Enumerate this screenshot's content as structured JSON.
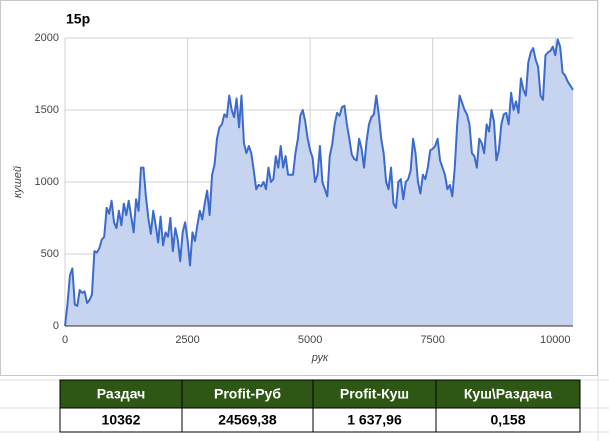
{
  "chart_data": {
    "type": "area",
    "title": "15р",
    "xlabel": "рук",
    "ylabel": "кушей",
    "x": [
      0,
      50,
      100,
      150,
      200,
      250,
      300,
      350,
      400,
      450,
      500,
      550,
      600,
      650,
      700,
      750,
      800,
      850,
      900,
      950,
      1000,
      1050,
      1100,
      1150,
      1200,
      1250,
      1300,
      1350,
      1400,
      1450,
      1500,
      1550,
      1600,
      1650,
      1700,
      1750,
      1800,
      1850,
      1900,
      1950,
      2000,
      2050,
      2100,
      2150,
      2200,
      2250,
      2300,
      2350,
      2400,
      2450,
      2500,
      2550,
      2600,
      2650,
      2700,
      2750,
      2800,
      2850,
      2900,
      2950,
      3000,
      3050,
      3100,
      3150,
      3200,
      3250,
      3300,
      3350,
      3400,
      3450,
      3500,
      3550,
      3600,
      3650,
      3700,
      3750,
      3800,
      3850,
      3900,
      3950,
      4000,
      4050,
      4100,
      4150,
      4200,
      4250,
      4300,
      4350,
      4400,
      4450,
      4500,
      4550,
      4600,
      4650,
      4700,
      4750,
      4800,
      4850,
      4900,
      4950,
      5000,
      5050,
      5100,
      5150,
      5200,
      5250,
      5300,
      5350,
      5400,
      5450,
      5500,
      5550,
      5600,
      5650,
      5700,
      5750,
      5800,
      5850,
      5900,
      5950,
      6000,
      6050,
      6100,
      6150,
      6200,
      6250,
      6300,
      6350,
      6400,
      6450,
      6500,
      6550,
      6600,
      6650,
      6700,
      6750,
      6800,
      6850,
      6900,
      6950,
      7000,
      7050,
      7100,
      7150,
      7200,
      7250,
      7300,
      7350,
      7400,
      7450,
      7500,
      7550,
      7600,
      7650,
      7700,
      7750,
      7800,
      7850,
      7900,
      7950,
      8000,
      8050,
      8100,
      8150,
      8200,
      8250,
      8300,
      8350,
      8400,
      8450,
      8500,
      8550,
      8600,
      8650,
      8700,
      8750,
      8800,
      8850,
      8900,
      8950,
      9000,
      9050,
      9100,
      9150,
      9200,
      9250,
      9300,
      9350,
      9400,
      9450,
      9500,
      9550,
      9600,
      9650,
      9700,
      9750,
      9800,
      9850,
      9900,
      9950,
      10000,
      10050,
      10100,
      10150,
      10200,
      10250,
      10362
    ],
    "values": [
      0,
      150,
      350,
      400,
      150,
      140,
      250,
      230,
      240,
      160,
      180,
      220,
      520,
      510,
      540,
      600,
      620,
      820,
      780,
      870,
      720,
      680,
      800,
      700,
      850,
      770,
      870,
      760,
      650,
      880,
      800,
      1100,
      1100,
      900,
      750,
      640,
      800,
      700,
      580,
      760,
      560,
      650,
      620,
      750,
      520,
      680,
      600,
      450,
      650,
      720,
      600,
      420,
      650,
      590,
      700,
      800,
      740,
      850,
      940,
      770,
      1050,
      1120,
      1300,
      1380,
      1400,
      1470,
      1450,
      1600,
      1500,
      1450,
      1580,
      1380,
      1600,
      1270,
      1200,
      1250,
      1200,
      1080,
      950,
      980,
      970,
      1000,
      950,
      1100,
      1000,
      1020,
      1180,
      1100,
      1250,
      1100,
      1180,
      1050,
      1050,
      1050,
      1200,
      1300,
      1460,
      1500,
      1420,
      1300,
      1220,
      1170,
      1000,
      1050,
      1250,
      1000,
      950,
      900,
      1180,
      1260,
      1400,
      1480,
      1460,
      1520,
      1530,
      1400,
      1300,
      1190,
      1160,
      1150,
      1300,
      1230,
      1100,
      1280,
      1400,
      1450,
      1470,
      1600,
      1470,
      1300,
      1200,
      1000,
      950,
      1100,
      850,
      820,
      1000,
      1020,
      880,
      1000,
      1020,
      1080,
      1300,
      1200,
      1000,
      920,
      1050,
      1020,
      1100,
      1220,
      1230,
      1250,
      1300,
      1150,
      1100,
      1050,
      950,
      980,
      900,
      1100,
      1400,
      1600,
      1550,
      1500,
      1470,
      1400,
      1200,
      1180,
      1100,
      1300,
      1270,
      1200,
      1400,
      1350,
      1500,
      1420,
      1150,
      1220,
      1400,
      1470,
      1480,
      1400,
      1620,
      1500,
      1560,
      1480,
      1720,
      1640,
      1600,
      1830,
      1900,
      1930,
      1850,
      1800,
      1600,
      1570,
      1880,
      1900,
      1910,
      1940,
      1880,
      1990,
      1940,
      1760,
      1740,
      1700,
      1640
    ],
    "color": "#3d6bcc",
    "fill_color": "#c6d4ef",
    "xlim": [
      0,
      10362
    ],
    "xticks": [
      0,
      2500,
      5000,
      7500,
      10000
    ],
    "ylim": [
      0,
      2000
    ],
    "yticks": [
      0,
      500,
      1000,
      1500,
      2000
    ],
    "grid": true
  },
  "table": {
    "header": [
      "Раздач",
      "Profit-Руб",
      "Profit-Куш",
      "Куш\\Раздача"
    ],
    "rows": [
      [
        "10362",
        "24569,38",
        "1 637,96",
        "0,158"
      ]
    ]
  }
}
